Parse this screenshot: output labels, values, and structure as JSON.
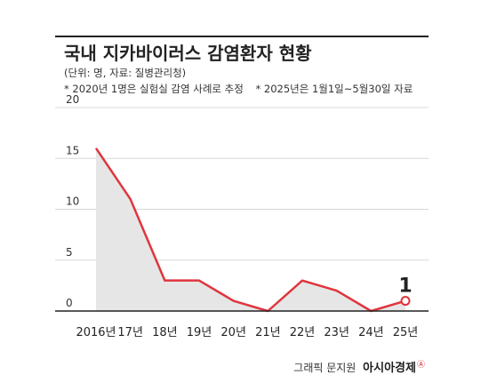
{
  "title": "국내 지카바이러스 감염환자 현황",
  "subtitle": "(단위: 명, 자료: 질병관리청)",
  "notes": [
    "* 2020년 1명은 실험실 감염 사례로 추정",
    "* 2025년은 1월1일~5월30일 자료"
  ],
  "credit": {
    "author": "그래픽 문지원",
    "brand": "아시아경제",
    "brand_mark": "Ⓐ"
  },
  "colors": {
    "line": "#e0353d",
    "area": "#e6e6e6",
    "axis": "#222222",
    "grid": "#d8d8d8",
    "marker_fill": "#ffffff"
  },
  "chart_data": {
    "type": "area",
    "categories": [
      "2016년",
      "17년",
      "18년",
      "19년",
      "20년",
      "21년",
      "22년",
      "23년",
      "24년",
      "25년"
    ],
    "series": [
      {
        "values": [
          16,
          11,
          3,
          3,
          1,
          0,
          3,
          2,
          0,
          1
        ]
      }
    ],
    "yticks": [
      0,
      5,
      10,
      15,
      20
    ],
    "ylim": [
      0,
      20
    ],
    "xlabel": "",
    "ylabel": "",
    "annotations": [
      {
        "category": "25년",
        "value": 1,
        "text": "1"
      }
    ],
    "grid": true,
    "legend": "none"
  }
}
